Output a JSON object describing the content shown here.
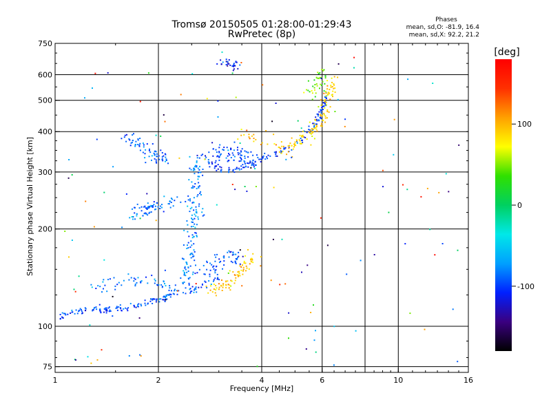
{
  "chart_data": {
    "type": "scatter",
    "title": "Tromsø 20150505 01:28:00-01:29:43",
    "subtitle": "RwPretec (8p)",
    "phase_header": "Phases",
    "phase_stats": [
      "mean, sd,O: -81.9, 16.4",
      "mean, sd,X:  92.2, 21.2"
    ],
    "xlabel": "Frequency [MHz]",
    "ylabel": "Stationary phase Virtual Height [km]",
    "x_scale": "log",
    "y_scale": "log",
    "xlim": [
      1,
      16
    ],
    "ylim": [
      72,
      750
    ],
    "xticks": [
      1,
      2,
      4,
      6,
      10,
      16
    ],
    "xtick_labels": [
      "1",
      "2",
      "4",
      "6",
      "10",
      "16"
    ],
    "x_minor_gridlines": [
      8
    ],
    "yticks": [
      75,
      100,
      200,
      300,
      400,
      500,
      600,
      750
    ],
    "ytick_labels": [
      "75",
      "100",
      "200",
      "300",
      "400",
      "500",
      "600",
      "750"
    ],
    "grid": true,
    "colorbar": {
      "label": "[deg]",
      "range": [
        -180,
        180
      ],
      "ticks": [
        100,
        0,
        -100
      ],
      "tick_labels": [
        "100",
        "0",
        "-100"
      ],
      "colors": [
        "#000000",
        "#3a0080",
        "#0020ff",
        "#00a0ff",
        "#00e8e8",
        "#00d060",
        "#30e000",
        "#ffff00",
        "#ffa000",
        "#ff3000",
        "#ff0000"
      ]
    },
    "series": [
      {
        "trace": [
          [
            1.0,
            104
          ],
          [
            1.1,
            110
          ],
          [
            1.25,
            113
          ],
          [
            1.4,
            112
          ],
          [
            1.6,
            114
          ],
          [
            1.8,
            117
          ],
          [
            2.0,
            121
          ],
          [
            2.2,
            125
          ],
          [
            2.4,
            128
          ],
          [
            2.6,
            131
          ],
          [
            2.8,
            136
          ],
          [
            3.0,
            143
          ]
        ],
        "phase": -95,
        "spread": 0.02,
        "scatter": 0.7,
        "n": 160
      },
      {
        "trace": [
          [
            1.3,
            135
          ],
          [
            1.5,
            138
          ],
          [
            1.7,
            140
          ],
          [
            1.9,
            138
          ],
          [
            2.1,
            133
          ],
          [
            2.3,
            128
          ]
        ],
        "phase": -85,
        "spread": 0.05,
        "scatter": 1.5,
        "n": 60
      },
      {
        "trace": [
          [
            2.4,
            135
          ],
          [
            2.45,
            160
          ],
          [
            2.5,
            185
          ],
          [
            2.55,
            215
          ],
          [
            2.55,
            250
          ],
          [
            2.6,
            290
          ],
          [
            2.55,
            330
          ]
        ],
        "phase": -80,
        "spread": 0.04,
        "scatter": 1.5,
        "n": 150
      },
      {
        "trace": [
          [
            2.75,
            150
          ],
          [
            2.9,
            155
          ],
          [
            3.05,
            160
          ],
          [
            3.2,
            162
          ],
          [
            3.4,
            163
          ],
          [
            3.6,
            165
          ]
        ],
        "phase": -95,
        "spread": 0.05,
        "scatter": 2.0,
        "n": 60
      },
      {
        "trace": [
          [
            2.8,
            128
          ],
          [
            3.0,
            130
          ],
          [
            3.2,
            135
          ],
          [
            3.4,
            145
          ],
          [
            3.6,
            155
          ],
          [
            3.8,
            165
          ]
        ],
        "phase": 95,
        "spread": 0.05,
        "scatter": 1.2,
        "n": 80
      },
      {
        "trace": [
          [
            1.65,
            220
          ],
          [
            1.8,
            228
          ],
          [
            1.95,
            235
          ],
          [
            2.1,
            240
          ],
          [
            2.25,
            245
          ]
        ],
        "phase": -85,
        "spread": 0.03,
        "scatter": 1.4,
        "n": 70
      },
      {
        "trace": [
          [
            1.6,
            400
          ],
          [
            1.7,
            375
          ],
          [
            1.85,
            345
          ],
          [
            2.0,
            335
          ],
          [
            2.1,
            330
          ]
        ],
        "phase": -88,
        "spread": 0.03,
        "scatter": 1.4,
        "n": 70
      },
      {
        "trace": [
          [
            2.6,
            340
          ],
          [
            2.8,
            320
          ],
          [
            3.0,
            305
          ],
          [
            3.4,
            305
          ],
          [
            3.8,
            320
          ],
          [
            4.3,
            340
          ],
          [
            4.8,
            355
          ],
          [
            5.3,
            380
          ],
          [
            5.7,
            420
          ],
          [
            6.0,
            470
          ],
          [
            6.2,
            520
          ]
        ],
        "phase": -100,
        "spread": 0.02,
        "scatter": 0.8,
        "n": 150
      },
      {
        "trace": [
          [
            2.9,
            350
          ],
          [
            3.1,
            345
          ],
          [
            3.3,
            340
          ],
          [
            3.6,
            335
          ],
          [
            3.9,
            330
          ]
        ],
        "phase": -95,
        "spread": 0.05,
        "scatter": 2.0,
        "n": 80
      },
      {
        "trace": [
          [
            4.5,
            350
          ],
          [
            4.9,
            360
          ],
          [
            5.3,
            380
          ],
          [
            5.7,
            410
          ],
          [
            6.0,
            450
          ],
          [
            6.3,
            520
          ],
          [
            6.5,
            580
          ]
        ],
        "phase": 90,
        "spread": 0.03,
        "scatter": 1.3,
        "n": 120
      },
      {
        "trace": [
          [
            5.6,
            520
          ],
          [
            5.9,
            570
          ],
          [
            6.1,
            610
          ]
        ],
        "phase": 40,
        "spread": 0.03,
        "scatter": 1.5,
        "n": 40
      },
      {
        "trace": [
          [
            3.0,
            650
          ],
          [
            3.2,
            645
          ],
          [
            3.4,
            640
          ]
        ],
        "phase": -110,
        "spread": 0.02,
        "scatter": 1.2,
        "n": 30
      },
      {
        "trace": [
          [
            3.4,
            400
          ],
          [
            3.8,
            380
          ],
          [
            4.3,
            370
          ]
        ],
        "phase": 95,
        "spread": 0.04,
        "scatter": 1.5,
        "n": 20
      },
      {
        "trace": [
          [
            1.0,
            150
          ],
          [
            16.0,
            150
          ]
        ],
        "phase": 0,
        "phase_random": true,
        "spread": 0.7,
        "scatter": 1.0,
        "n": 140
      }
    ]
  }
}
